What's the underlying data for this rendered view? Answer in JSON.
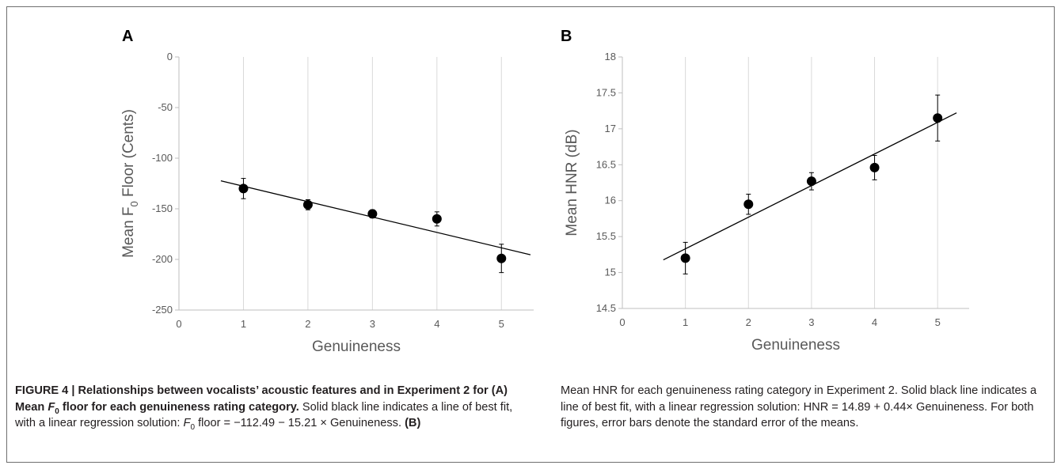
{
  "chart_data": [
    {
      "type": "scatter",
      "panel": "A",
      "xlabel": "Genuineness",
      "ylabel_prefix": "Mean F",
      "ylabel_sub": "0",
      "ylabel_suffix": " Floor (Cents)",
      "xlim": [
        0,
        5.5
      ],
      "ylim": [
        -250,
        0
      ],
      "xticks": [
        "0",
        "1",
        "2",
        "3",
        "4",
        "5"
      ],
      "yticks": [
        "0",
        "-50",
        "-100",
        "-150",
        "-200",
        "-250"
      ],
      "ytick_values": [
        0,
        -50,
        -100,
        -150,
        -200,
        -250
      ],
      "grid": "vertical",
      "x": [
        1,
        2,
        3,
        4,
        5
      ],
      "y": [
        -130,
        -146,
        -155,
        -160,
        -199
      ],
      "error": [
        10,
        5,
        4,
        7,
        14
      ],
      "fit": {
        "intercept": -112.49,
        "slope": -15.21,
        "x_range": [
          0.65,
          5.45
        ]
      }
    },
    {
      "type": "scatter",
      "panel": "B",
      "xlabel": "Genuineness",
      "ylabel": "Mean HNR (dB)",
      "xlim": [
        0,
        5.5
      ],
      "ylim": [
        14.5,
        18
      ],
      "xticks": [
        "0",
        "1",
        "2",
        "3",
        "4",
        "5"
      ],
      "yticks": [
        "18",
        "17.5",
        "17",
        "16.5",
        "16",
        "15.5",
        "15",
        "14.5"
      ],
      "ytick_values": [
        18,
        17.5,
        17,
        16.5,
        16,
        15.5,
        15,
        14.5
      ],
      "grid": "vertical",
      "x": [
        1,
        2,
        3,
        4,
        5
      ],
      "y": [
        15.2,
        15.95,
        16.27,
        16.46,
        17.15
      ],
      "error": [
        0.22,
        0.14,
        0.12,
        0.17,
        0.32
      ],
      "fit": {
        "intercept": 14.89,
        "slope": 0.44,
        "x_range": [
          0.65,
          5.3
        ]
      }
    }
  ],
  "caption": {
    "bold_prefix": "FIGURE 4 | Relationships between vocalists’ acoustic features and in Experiment 2 for (A) Mean ",
    "bold_f": "F",
    "bold_sub": "0",
    "bold_suffix": " floor for each genuineness rating category.",
    "text1": " Solid black line indicates a line of best fit, with a linear regression solution: ",
    "f_italic": "F",
    "f_sub": "0",
    "text2": " floor = −112.49 − 15.21 × Genuineness. ",
    "bold_b": "(B)",
    "text3": " Mean HNR for each genuineness rating category in Experiment 2. Solid black line indicates a line of best fit, with a linear regression solution: HNR = 14.89 + 0.44× Genuineness. For both figures, error bars denote the standard error of the means."
  }
}
